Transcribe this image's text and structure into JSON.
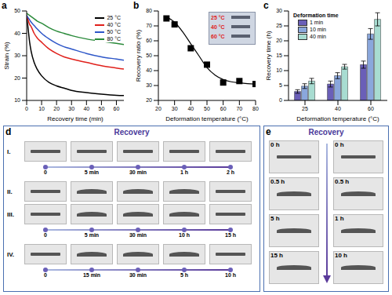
{
  "chart_data": [
    {
      "panel_label": "a",
      "type": "line",
      "x_label": "Recovery time (min)",
      "y_label": "Strain (%)",
      "xlim": [
        0,
        65
      ],
      "xticks": [
        0,
        10,
        20,
        30,
        40,
        50,
        60
      ],
      "ylim": [
        10,
        50
      ],
      "yticks": [
        10,
        20,
        30,
        40,
        50
      ],
      "legend": "upper right",
      "x": [
        0,
        1,
        2,
        3,
        5,
        7,
        10,
        15,
        20,
        25,
        30,
        40,
        50,
        60,
        65
      ],
      "series": [
        {
          "name": "25 °C",
          "color": "#000000",
          "values": [
            48,
            42,
            36,
            32,
            27,
            24,
            21,
            18,
            16.5,
            15.5,
            14.5,
            13.5,
            12.8,
            12.3,
            12.2
          ]
        },
        {
          "name": "40 °C",
          "color": "#e0201b",
          "values": [
            48,
            46,
            44,
            43,
            40,
            38,
            36,
            33,
            31,
            29.5,
            28.5,
            27,
            25.5,
            24.5,
            24
          ]
        },
        {
          "name": "50 °C",
          "color": "#2d56c8",
          "values": [
            48,
            47,
            46,
            45,
            43.5,
            42,
            40,
            37.5,
            35.5,
            34,
            33,
            31,
            29.5,
            28.5,
            28
          ]
        },
        {
          "name": "80 °C",
          "color": "#2a8a3a",
          "values": [
            49,
            48.5,
            48,
            47.5,
            46.5,
            45.5,
            44.5,
            42.5,
            41,
            40,
            39,
            37.5,
            36.5,
            35.5,
            35
          ]
        }
      ]
    },
    {
      "panel_label": "b",
      "type": "scatter",
      "x_label": "Deformation temperature (°C)",
      "y_label": "Recovery ratio (%)",
      "xlim": [
        20,
        80
      ],
      "xticks": [
        20,
        30,
        40,
        50,
        60,
        70,
        80
      ],
      "ylim": [
        20,
        80
      ],
      "yticks": [
        20,
        30,
        40,
        50,
        60,
        70,
        80
      ],
      "annotations": [
        "25 °C",
        "40 °C",
        "60 °C"
      ],
      "series": [
        {
          "type": "scatter",
          "marker": "square",
          "color": "#000000",
          "x": [
            25,
            30,
            40,
            50,
            60,
            70,
            80
          ],
          "values": [
            75,
            71,
            55,
            44,
            32,
            33,
            31
          ]
        },
        {
          "type": "line",
          "color": "#000000",
          "x": [
            25,
            30,
            35,
            40,
            45,
            50,
            55,
            60,
            65,
            70,
            75,
            80
          ],
          "values": [
            76,
            72.5,
            66,
            58,
            50,
            42,
            37,
            34,
            32.5,
            31.8,
            31.3,
            31
          ]
        }
      ]
    },
    {
      "panel_label": "c",
      "type": "bar",
      "x_label": "Deformation temperature (°C)",
      "y_label": "Recovery time (h)",
      "categories": [
        "25",
        "40",
        "60"
      ],
      "ylim": [
        0,
        30
      ],
      "yticks": [
        0,
        5,
        10,
        15,
        20,
        25,
        30
      ],
      "legend": "upper left",
      "legend_title": "Deformation time",
      "series": [
        {
          "name": "1 min",
          "color": "#6a5fb8",
          "values": [
            3,
            5.5,
            12
          ],
          "error": [
            0.6,
            1,
            1.2
          ]
        },
        {
          "name": "10 min",
          "color": "#8aa7dc",
          "values": [
            4.8,
            8.3,
            22.3
          ],
          "error": [
            0.8,
            1,
            1.8
          ]
        },
        {
          "name": "40 min",
          "color": "#a8dcd1",
          "values": [
            6.5,
            11.3,
            27.2
          ],
          "error": [
            0.9,
            0.8,
            2.2
          ]
        }
      ]
    }
  ],
  "photo_panels": [
    {
      "panel_label": "d",
      "title": "Recovery",
      "rows": [
        {
          "labels": [
            "I."
          ],
          "times": [
            "0",
            "5 min",
            "30 min",
            "1 h",
            "2 h"
          ]
        },
        {
          "labels": [
            "II.",
            "III."
          ],
          "times": [
            "0",
            "5 min",
            "30 min",
            "10 h",
            "15 h"
          ]
        },
        {
          "labels": [
            "IV."
          ],
          "times": [
            "0",
            "15 min",
            "30 min",
            "5 h",
            "10 h"
          ]
        }
      ]
    },
    {
      "panel_label": "e",
      "title": "Recovery",
      "columns": [
        [
          "0 h",
          "0.5 h",
          "5 h",
          "15 h"
        ],
        [
          "0 h",
          "0.5 h",
          "1 h",
          "10 h"
        ]
      ]
    }
  ]
}
